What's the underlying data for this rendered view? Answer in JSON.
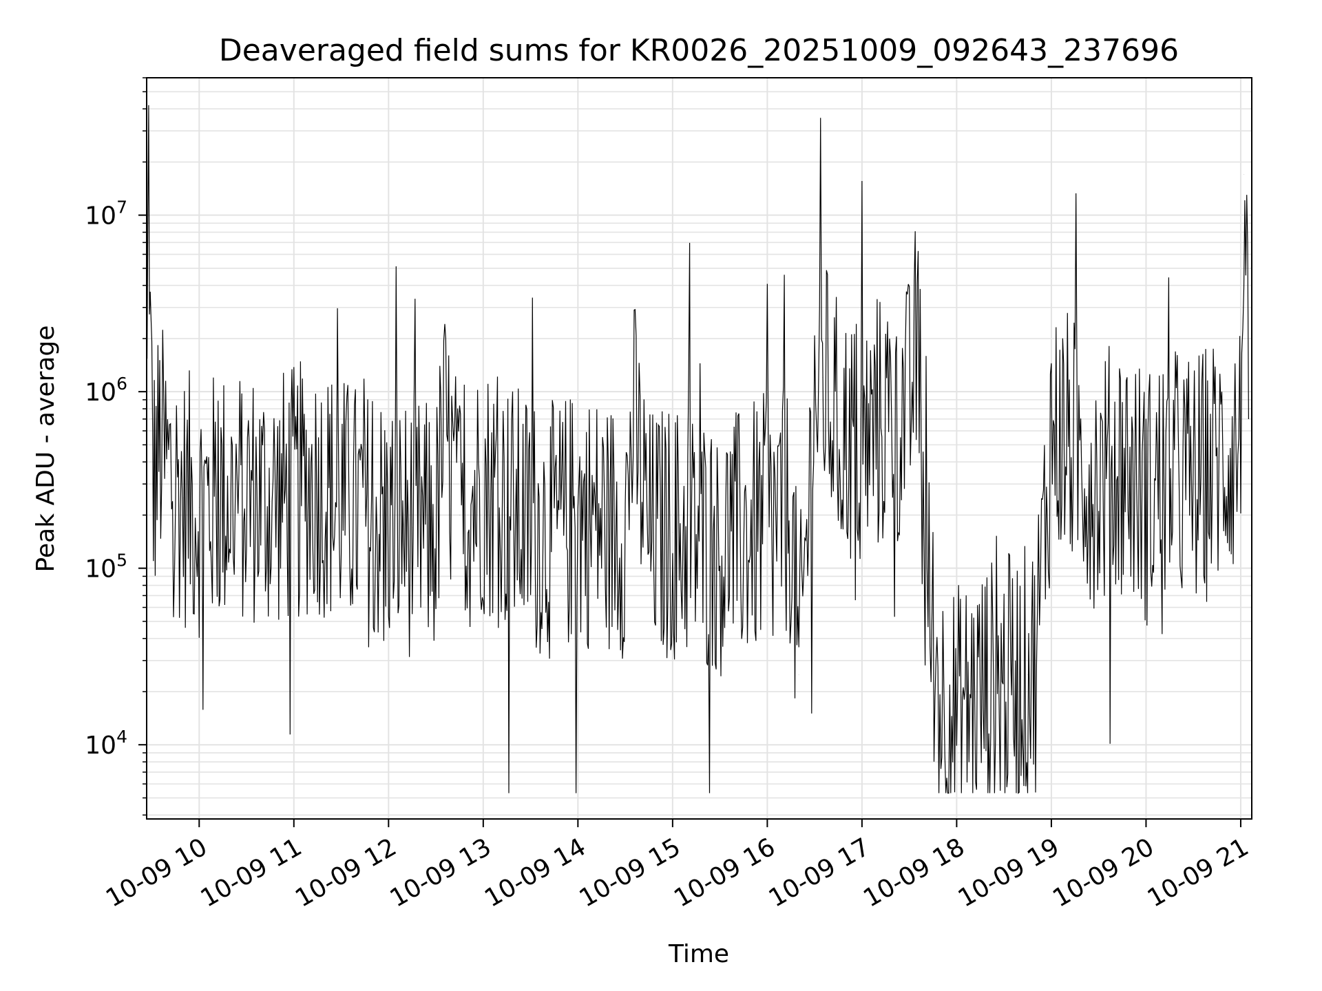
{
  "chart_data": {
    "type": "line",
    "title": "Deaveraged field sums for KR0026_20251009_092643_237696",
    "xlabel": "Time",
    "ylabel": "Peak ADU - average",
    "y_scale": "log",
    "ylim": [
      3800,
      60000000
    ],
    "xlim": [
      "2025-10-09 09:26:43",
      "2025-10-09 21:07:00"
    ],
    "grid": true,
    "line_color": "#000000",
    "x_ticks": [
      "10-09 10",
      "10-09 11",
      "10-09 12",
      "10-09 13",
      "10-09 14",
      "10-09 15",
      "10-09 16",
      "10-09 17",
      "10-09 18",
      "10-09 19",
      "10-09 20",
      "10-09 21"
    ],
    "y_ticks": [
      {
        "value": 10000,
        "base": "10",
        "exp": "4"
      },
      {
        "value": 100000,
        "base": "10",
        "exp": "5"
      },
      {
        "value": 1000000,
        "base": "10",
        "exp": "6"
      },
      {
        "value": 10000000,
        "base": "10",
        "exp": "7"
      }
    ],
    "series": [
      {
        "x": [
          "2025-10-09 09:27",
          "2025-10-09 09:28",
          "2025-10-09 09:29",
          "2025-10-09 09:30",
          "2025-10-09 09:31",
          "2025-10-09 09:35",
          "2025-10-09 09:40",
          "2025-10-09 09:45",
          "2025-10-09 09:50",
          "2025-10-09 10:00",
          "2025-10-09 10:15",
          "2025-10-09 10:30",
          "2025-10-09 10:45",
          "2025-10-09 11:00",
          "2025-10-09 11:15",
          "2025-10-09 11:30",
          "2025-10-09 11:45",
          "2025-10-09 12:00",
          "2025-10-09 12:15",
          "2025-10-09 12:30",
          "2025-10-09 12:35",
          "2025-10-09 12:45",
          "2025-10-09 13:00",
          "2025-10-09 13:15",
          "2025-10-09 13:30",
          "2025-10-09 13:45",
          "2025-10-09 14:00",
          "2025-10-09 14:15",
          "2025-10-09 14:30",
          "2025-10-09 14:35",
          "2025-10-09 14:45",
          "2025-10-09 15:00",
          "2025-10-09 15:15",
          "2025-10-09 15:30",
          "2025-10-09 15:45",
          "2025-10-09 16:00",
          "2025-10-09 16:15",
          "2025-10-09 16:20",
          "2025-10-09 16:30",
          "2025-10-09 16:35",
          "2025-10-09 16:45",
          "2025-10-09 17:00",
          "2025-10-09 17:15",
          "2025-10-09 17:25",
          "2025-10-09 17:30",
          "2025-10-09 17:35",
          "2025-10-09 17:40",
          "2025-10-09 17:50",
          "2025-10-09 18:00",
          "2025-10-09 18:15",
          "2025-10-09 18:30",
          "2025-10-09 18:45",
          "2025-10-09 18:50",
          "2025-10-09 19:00",
          "2025-10-09 19:15",
          "2025-10-09 19:30",
          "2025-10-09 19:45",
          "2025-10-09 20:00",
          "2025-10-09 20:15",
          "2025-10-09 20:30",
          "2025-10-09 20:45",
          "2025-10-09 21:00",
          "2025-10-09 21:02",
          "2025-10-09 21:05"
        ],
        "y": [
          900000,
          40000000,
          1800000,
          700000,
          300000,
          500000,
          350000,
          300000,
          250000,
          220000,
          250000,
          260000,
          240000,
          260000,
          300000,
          230000,
          200000,
          180000,
          170000,
          160000,
          600000,
          200000,
          300000,
          220000,
          180000,
          160000,
          200000,
          180000,
          170000,
          700000,
          150000,
          160000,
          150000,
          130000,
          150000,
          180000,
          200000,
          25000,
          900000,
          1200000,
          600000,
          500000,
          700000,
          800000,
          800000,
          2000000,
          100000,
          18000,
          15000,
          20000,
          22000,
          25000,
          30000,
          600000,
          500000,
          300000,
          400000,
          250000,
          350000,
          300000,
          400000,
          500000,
          17000000,
          700000
        ]
      }
    ]
  }
}
